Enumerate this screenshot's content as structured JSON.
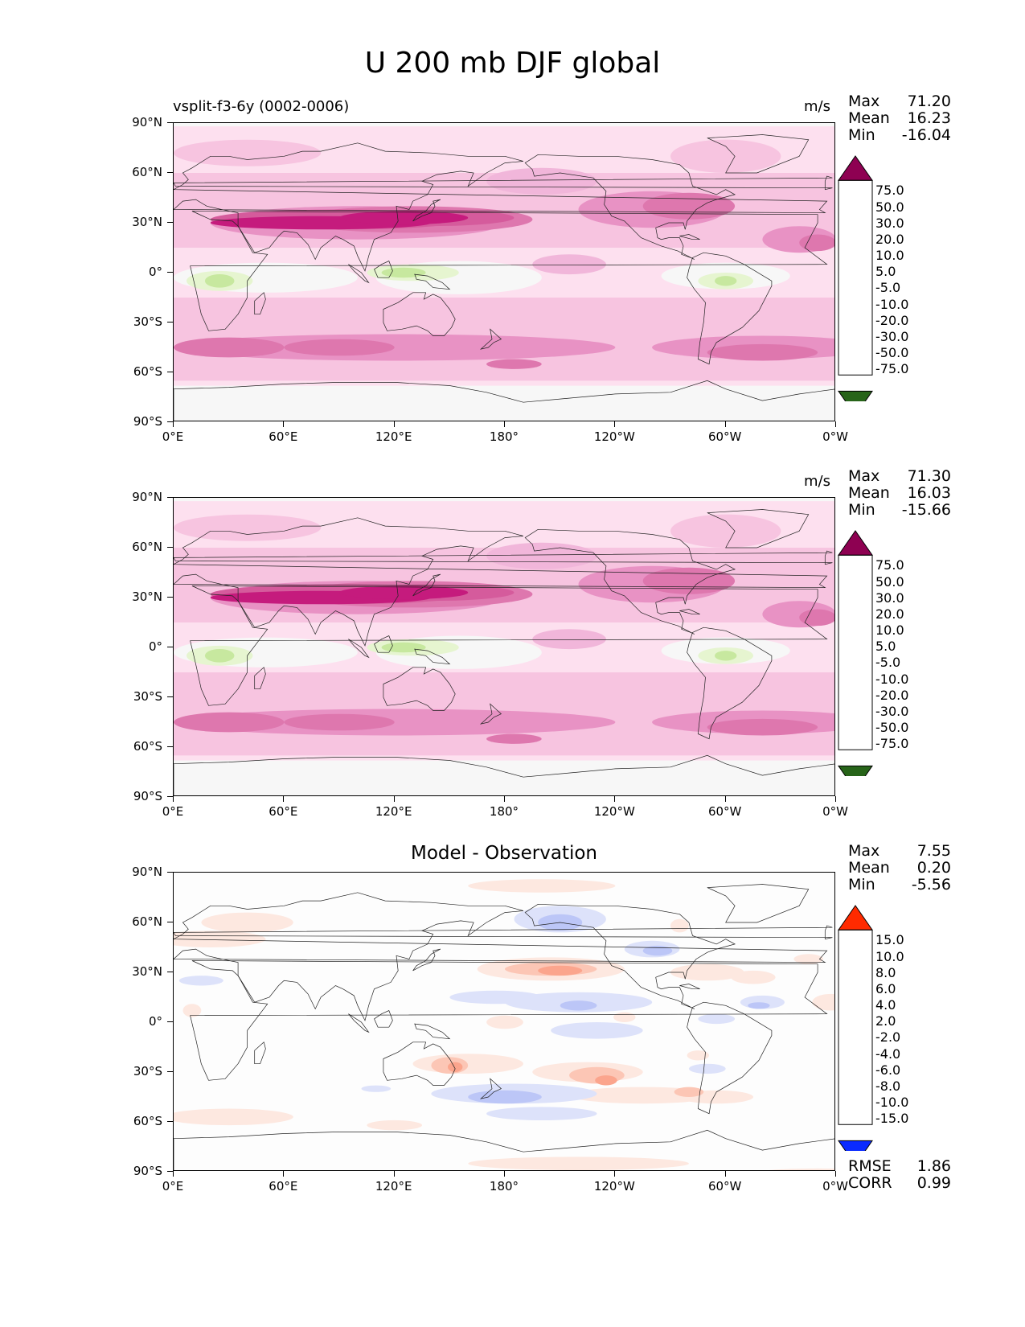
{
  "suptitle": "U 200 mb DJF global",
  "colors": {
    "pink": [
      "#f7f7f7",
      "#fde0ef",
      "#f7c4e0",
      "#f1b6da",
      "#e892c4",
      "#de77ae",
      "#d55b9c",
      "#c51b7d",
      "#8e0152"
    ],
    "green": [
      "#f7f7f7",
      "#e6f5d0",
      "#c7e89f",
      "#a6d96a",
      "#7fbc41",
      "#4d9221",
      "#276419"
    ],
    "diff_pos": [
      "#fde8e0",
      "#fcc6b5",
      "#fba58d",
      "#f77d5f",
      "#f44e2e",
      "#ff2a00"
    ],
    "diff_neg": [
      "#dde2fa",
      "#bcc6f7",
      "#97a6f3",
      "#7585f0",
      "#4f63ec",
      "#0a2bff"
    ]
  },
  "panels": [
    {
      "id": "test",
      "left_title": "vsplit-f3-6y (0002-0006)",
      "center_title": "",
      "units": "m/s",
      "stats": [
        [
          "Max",
          "71.20"
        ],
        [
          "Mean",
          "16.23"
        ],
        [
          "Min",
          "-16.04"
        ]
      ],
      "extra_stats": []
    },
    {
      "id": "ref",
      "left_title": "",
      "center_title": "",
      "units": "m/s",
      "stats": [
        [
          "Max",
          "71.30"
        ],
        [
          "Mean",
          "16.03"
        ],
        [
          "Min",
          "-15.66"
        ]
      ],
      "extra_stats": []
    },
    {
      "id": "diff",
      "left_title": "",
      "center_title": "Model - Observation",
      "units": "",
      "stats": [
        [
          "Max",
          "7.55"
        ],
        [
          "Mean",
          "0.20"
        ],
        [
          "Min",
          "-5.56"
        ]
      ],
      "extra_stats": [
        [
          "RMSE",
          "1.86"
        ],
        [
          "CORR",
          "0.99"
        ]
      ]
    }
  ],
  "colorbar_main": [
    "75.0",
    "50.0",
    "30.0",
    "20.0",
    "10.0",
    "5.0",
    "-5.0",
    "-10.0",
    "-20.0",
    "-30.0",
    "-50.0",
    "-75.0"
  ],
  "colorbar_diff": [
    "15.0",
    "10.0",
    "8.0",
    "6.0",
    "4.0",
    "2.0",
    "-2.0",
    "-4.0",
    "-6.0",
    "-8.0",
    "-10.0",
    "-15.0"
  ],
  "lat_ticks": [
    "90°N",
    "60°N",
    "30°N",
    "0°",
    "30°S",
    "60°S",
    "90°S"
  ],
  "lon_ticks": [
    "0°E",
    "60°E",
    "120°E",
    "180°",
    "120°W",
    "60°W",
    "0°W"
  ],
  "chart_data": [
    {
      "type": "heatmap",
      "title": "vsplit-f3-6y (0002-0006)",
      "variable": "U 200 mb DJF global",
      "units": "m/s",
      "max": 71.2,
      "mean": 16.23,
      "min": -16.04,
      "levels": [
        -75,
        -50,
        -30,
        -20,
        -10,
        -5,
        5,
        10,
        20,
        30,
        50,
        75
      ],
      "xlim": [
        0,
        360
      ],
      "ylim": [
        -90,
        90
      ]
    },
    {
      "type": "heatmap",
      "title": "",
      "variable": "U 200 mb DJF global",
      "units": "m/s",
      "max": 71.3,
      "mean": 16.03,
      "min": -15.66,
      "levels": [
        -75,
        -50,
        -30,
        -20,
        -10,
        -5,
        5,
        10,
        20,
        30,
        50,
        75
      ],
      "xlim": [
        0,
        360
      ],
      "ylim": [
        -90,
        90
      ]
    },
    {
      "type": "heatmap",
      "title": "Model - Observation",
      "max": 7.55,
      "mean": 0.2,
      "min": -5.56,
      "rmse": 1.86,
      "corr": 0.99,
      "levels": [
        -15,
        -10,
        -8,
        -6,
        -4,
        -2,
        2,
        4,
        6,
        8,
        10,
        15
      ],
      "xlim": [
        0,
        360
      ],
      "ylim": [
        -90,
        90
      ]
    }
  ]
}
